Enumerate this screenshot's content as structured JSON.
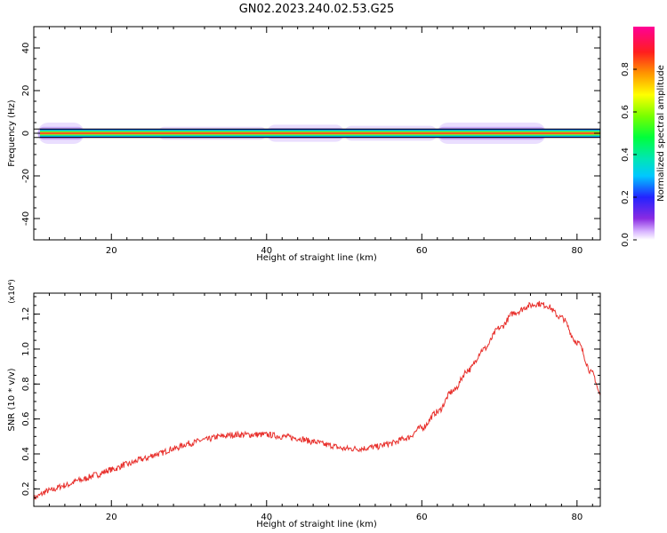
{
  "figure_title": "GN02.2023.240.02.53.G25",
  "colorbar": {
    "label": "Normalized spectral amplitude",
    "ticks": [
      "0.0",
      "0.2",
      "0.4",
      "0.6",
      "0.8"
    ],
    "tick_values": [
      0.0,
      0.2,
      0.4,
      0.6,
      0.8
    ],
    "range": [
      0,
      1
    ]
  },
  "chart_data": [
    {
      "type": "heatmap",
      "title": "",
      "xlabel": "Height of straight line (km)",
      "ylabel": "Frequency (Hz)",
      "xlim": [
        10,
        83
      ],
      "ylim": [
        -50,
        50
      ],
      "xticks": [
        20,
        40,
        60,
        80
      ],
      "yticks": [
        -40,
        -20,
        0,
        20,
        40
      ],
      "band_center_hz": 0,
      "band_halfwidth_hz": 2,
      "halo_segments": [
        {
          "x": [
            10.5,
            16.5
          ],
          "halfwidth_hz": 5
        },
        {
          "x": [
            16.5,
            26
          ],
          "halfwidth_hz": 2
        },
        {
          "x": [
            26,
            40
          ],
          "halfwidth_hz": 3
        },
        {
          "x": [
            40,
            50
          ],
          "halfwidth_hz": 4
        },
        {
          "x": [
            50,
            62
          ],
          "halfwidth_hz": 3.5
        },
        {
          "x": [
            62,
            76
          ],
          "halfwidth_hz": 5
        },
        {
          "x": [
            76,
            83
          ],
          "halfwidth_hz": 2
        }
      ]
    },
    {
      "type": "line",
      "title": "",
      "xlabel": "Height of straight line (km)",
      "ylabel": "SNR (10 * v/v)",
      "y_multiplier": "(x10⁴)",
      "xlim": [
        10,
        83
      ],
      "ylim": [
        0.1,
        1.32
      ],
      "xticks": [
        20,
        40,
        60,
        80
      ],
      "yticks": [
        0.2,
        0.4,
        0.6,
        0.8,
        1.0,
        1.2
      ],
      "ytick_labels": [
        "0.2",
        "0.4",
        "0.6",
        "0.8",
        "1.0",
        "1.2"
      ],
      "color": "#e8302c",
      "series": [
        {
          "x": [
            10,
            12,
            14,
            16,
            18,
            20,
            22,
            24,
            26,
            28,
            30,
            32,
            34,
            36,
            38,
            40,
            42,
            44,
            46,
            48,
            50,
            52,
            54,
            56,
            58,
            60,
            62,
            64,
            66,
            68,
            70,
            72,
            74,
            75,
            76,
            78,
            80,
            82,
            83
          ],
          "values": [
            0.15,
            0.19,
            0.22,
            0.25,
            0.28,
            0.31,
            0.34,
            0.37,
            0.4,
            0.43,
            0.46,
            0.48,
            0.5,
            0.51,
            0.51,
            0.51,
            0.5,
            0.49,
            0.47,
            0.45,
            0.43,
            0.43,
            0.44,
            0.46,
            0.49,
            0.55,
            0.64,
            0.76,
            0.88,
            1.0,
            1.12,
            1.21,
            1.25,
            1.26,
            1.25,
            1.18,
            1.04,
            0.86,
            0.74
          ]
        }
      ]
    }
  ]
}
